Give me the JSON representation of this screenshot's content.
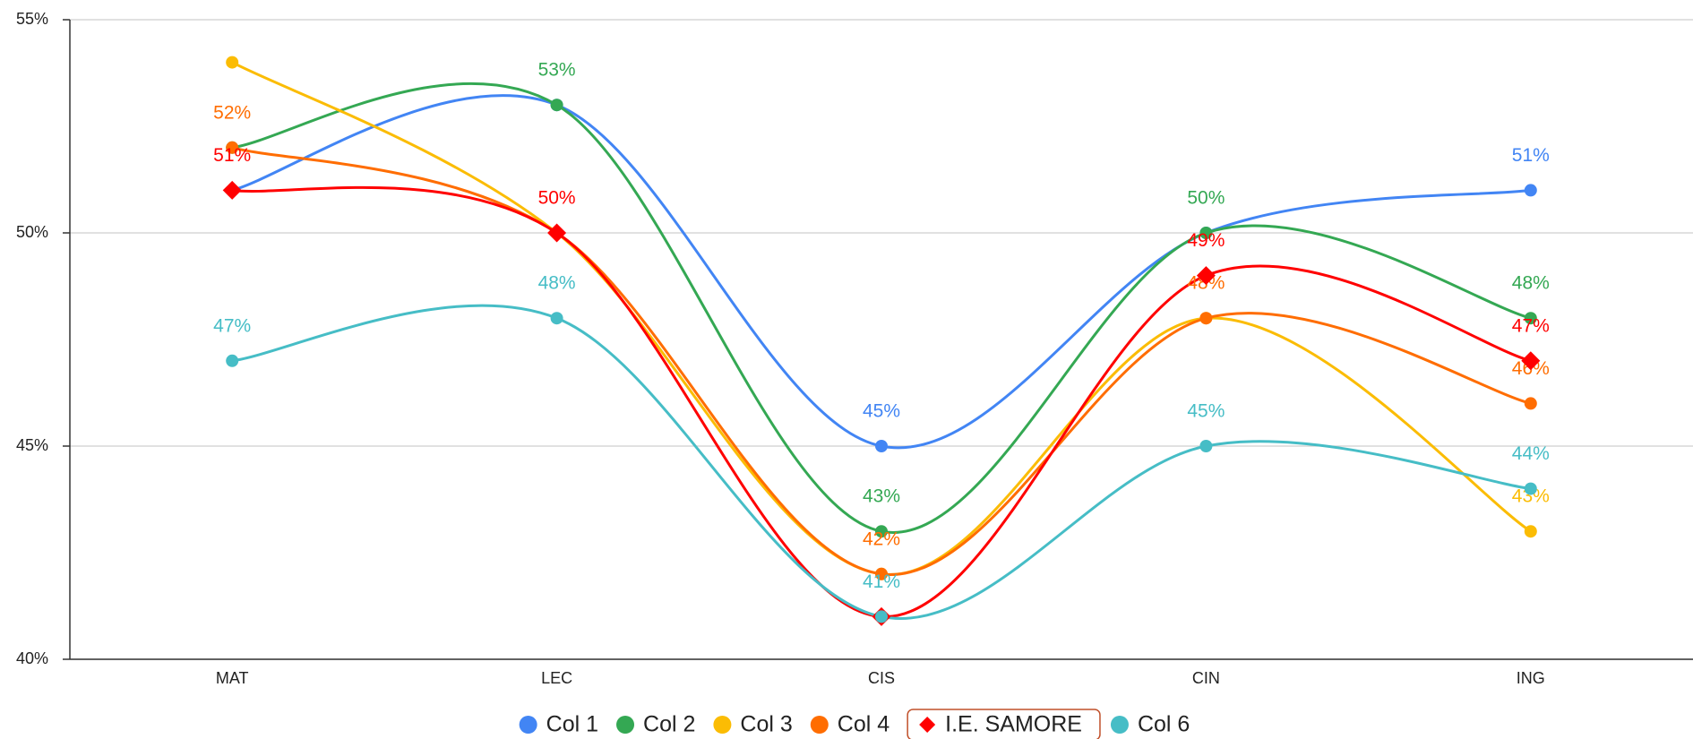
{
  "chart_data": {
    "type": "line",
    "categories": [
      "MAT",
      "LEC",
      "CIS",
      "CIN",
      "ING"
    ],
    "series": [
      {
        "name": "Col 1",
        "color": "#4285f4",
        "marker": "circle",
        "values": [
          51,
          53,
          45,
          50,
          51
        ],
        "value_labels": [
          null,
          null,
          "45%",
          null,
          "51%"
        ]
      },
      {
        "name": "Col 2",
        "color": "#34a853",
        "marker": "circle",
        "values": [
          52,
          53,
          43,
          50,
          48
        ],
        "value_labels": [
          null,
          "53%",
          "43%",
          "50%",
          "48%"
        ]
      },
      {
        "name": "Col 3",
        "color": "#fbbc04",
        "marker": "circle",
        "values": [
          54,
          50,
          42,
          48,
          43
        ],
        "value_labels": [
          null,
          null,
          null,
          null,
          "43%"
        ]
      },
      {
        "name": "Col 4",
        "color": "#ff6d01",
        "marker": "circle",
        "values": [
          52,
          50,
          42,
          48,
          46
        ],
        "value_labels": [
          "52%",
          null,
          "42%",
          "48%",
          "46%"
        ]
      },
      {
        "name": "I.E. SAMORE",
        "color": "#ff0000",
        "marker": "diamond",
        "values": [
          51,
          50,
          41,
          49,
          47
        ],
        "value_labels": [
          "51%",
          "50%",
          null,
          "49%",
          "47%"
        ]
      },
      {
        "name": "Col 6",
        "color": "#46bdc6",
        "marker": "circle",
        "values": [
          47,
          48,
          41,
          45,
          44
        ],
        "value_labels": [
          "47%",
          "48%",
          "41%",
          "45%",
          "44%"
        ]
      }
    ],
    "ylim": [
      40,
      55
    ],
    "yticks": [
      {
        "value": 40,
        "label": "40%"
      },
      {
        "value": 45,
        "label": "45%"
      },
      {
        "value": 50,
        "label": "50%"
      },
      {
        "value": 55,
        "label": "55%"
      }
    ],
    "grid": true,
    "smooth": true,
    "legend": "bottom"
  }
}
